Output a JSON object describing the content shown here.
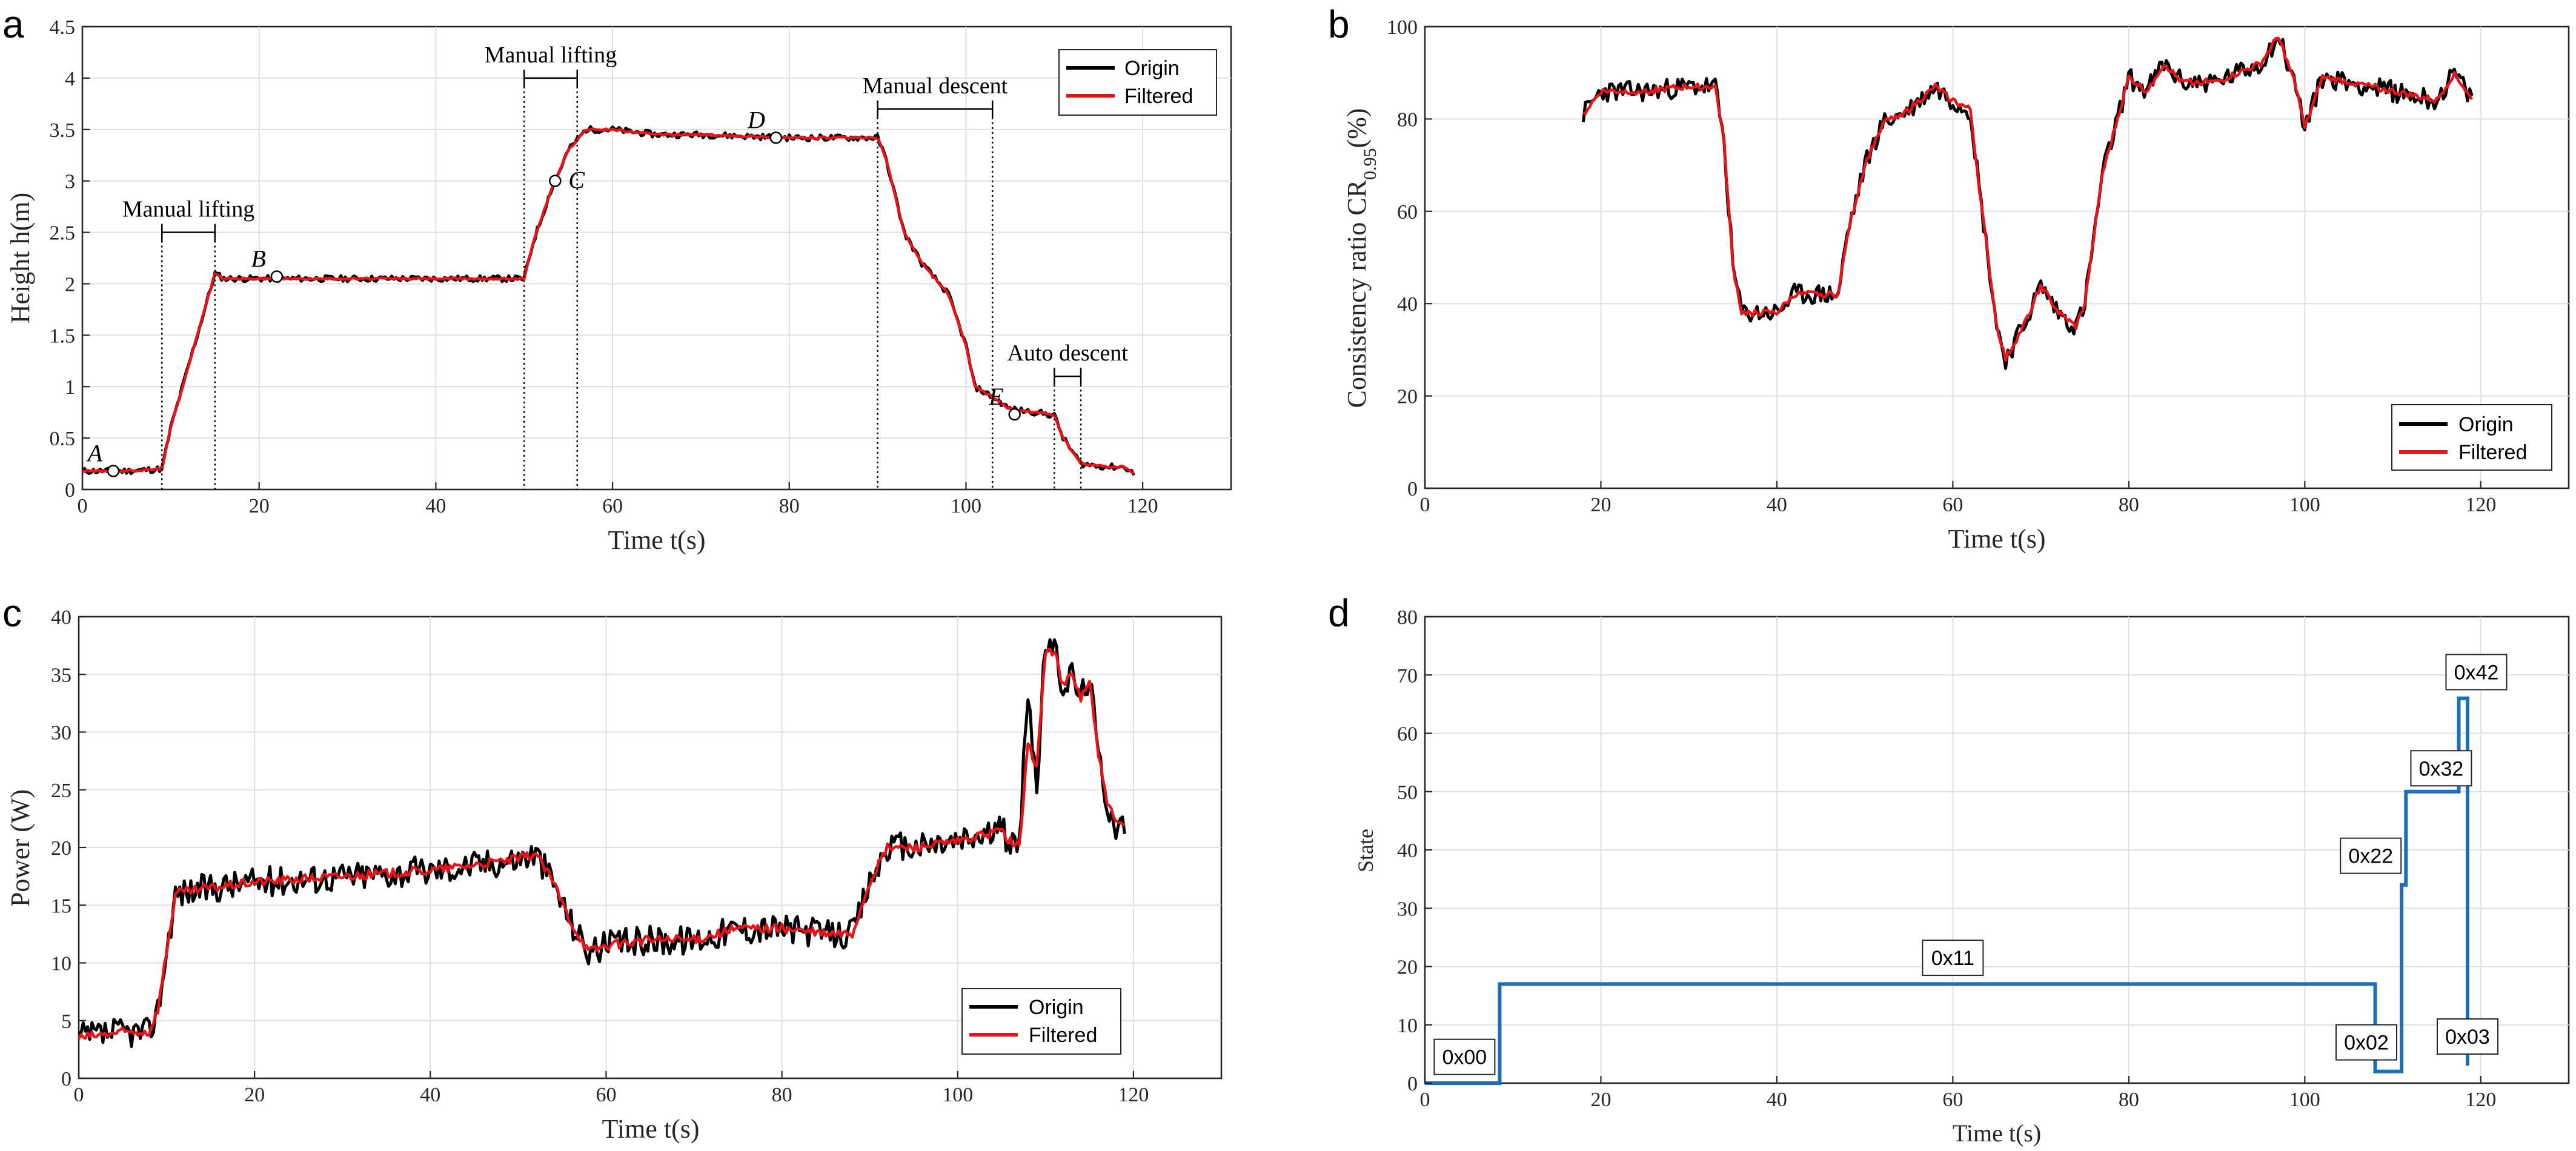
{
  "chart_data": [
    {
      "id": "a",
      "panel_label": "a",
      "type": "line",
      "ylabel": "Height h(m)",
      "xlabel": "Time t(s)",
      "xlim": [
        0,
        130
      ],
      "ylim": [
        0,
        4.5
      ],
      "xticks": [
        0,
        20,
        40,
        60,
        80,
        100,
        120
      ],
      "yticks": [
        0,
        0.5,
        1,
        1.5,
        2,
        2.5,
        3,
        3.5,
        4,
        4.5
      ],
      "ytick_labels": [
        "0",
        "0.5",
        "1",
        "1.5",
        "2",
        "2.5",
        "3",
        "3.5",
        "4",
        "4.5"
      ],
      "grid": true,
      "legend_position": "top-right",
      "legend": [
        "Origin",
        "Filtered"
      ],
      "colors": {
        "Origin": "#000000",
        "Filtered": "#e8141a"
      },
      "x": [
        0,
        5,
        9,
        10,
        12,
        14,
        15,
        16,
        20,
        30,
        40,
        50,
        51,
        53,
        55,
        57,
        60,
        65,
        70,
        80,
        90,
        91,
        93,
        95,
        98,
        100,
        101,
        103,
        105,
        108,
        110,
        111,
        113,
        116,
        118,
        119
      ],
      "series": [
        {
          "name": "Origin",
          "values": [
            0.18,
            0.18,
            0.2,
            0.6,
            1.2,
            1.8,
            2.1,
            2.05,
            2.05,
            2.05,
            2.05,
            2.05,
            2.4,
            2.9,
            3.3,
            3.5,
            3.5,
            3.45,
            3.45,
            3.42,
            3.42,
            3.2,
            2.5,
            2.2,
            1.9,
            1.4,
            1.0,
            0.9,
            0.78,
            0.75,
            0.72,
            0.5,
            0.25,
            0.22,
            0.22,
            0.15
          ]
        },
        {
          "name": "Filtered",
          "values": [
            0.18,
            0.18,
            0.2,
            0.6,
            1.2,
            1.8,
            2.1,
            2.05,
            2.05,
            2.05,
            2.05,
            2.05,
            2.4,
            2.9,
            3.3,
            3.5,
            3.5,
            3.45,
            3.45,
            3.42,
            3.42,
            3.2,
            2.5,
            2.2,
            1.9,
            1.4,
            1.0,
            0.9,
            0.78,
            0.75,
            0.72,
            0.5,
            0.25,
            0.22,
            0.22,
            0.15
          ]
        }
      ],
      "points": [
        {
          "label": "A",
          "x": 3.5,
          "y": 0.18
        },
        {
          "label": "B",
          "x": 22,
          "y": 2.07
        },
        {
          "label": "C",
          "x": 53.5,
          "y": 3.0
        },
        {
          "label": "D",
          "x": 78.5,
          "y": 3.42
        },
        {
          "label": "E",
          "x": 105.5,
          "y": 0.73
        }
      ],
      "annotations": [
        {
          "text": "Manual lifting",
          "x_start": 9,
          "x_end": 15,
          "y": 2.5
        },
        {
          "text": "Manual lifting",
          "x_start": 50,
          "x_end": 56,
          "y": 4.0
        },
        {
          "text": "Manual descent",
          "x_start": 90,
          "x_end": 103,
          "y": 3.7
        },
        {
          "text": "Auto descent",
          "x_start": 110,
          "x_end": 113,
          "y": 1.1
        }
      ]
    },
    {
      "id": "b",
      "panel_label": "b",
      "type": "line",
      "ylabel": "Consistency ratio CR0.95(%)",
      "xlabel": "Time t(s)",
      "xlim": [
        0,
        130
      ],
      "ylim": [
        0,
        100
      ],
      "xticks": [
        0,
        20,
        40,
        60,
        80,
        100,
        120
      ],
      "yticks": [
        0,
        20,
        40,
        60,
        80,
        100
      ],
      "grid": true,
      "legend_position": "bottom-right",
      "legend": [
        "Origin",
        "Filtered"
      ],
      "colors": {
        "Origin": "#000000",
        "Filtered": "#e8141a"
      },
      "x": [
        18,
        20,
        25,
        30,
        33,
        34,
        35,
        36,
        40,
        42,
        45,
        47,
        48,
        50,
        52,
        55,
        58,
        60,
        62,
        63,
        65,
        66,
        68,
        70,
        72,
        74,
        75,
        77,
        79,
        80,
        82,
        84,
        86,
        90,
        95,
        97,
        99,
        100,
        102,
        105,
        110,
        115,
        117,
        119
      ],
      "series": [
        {
          "name": "Origin",
          "values": [
            81,
            86,
            86,
            87,
            87,
            75,
            48,
            38,
            38,
            42,
            42,
            42,
            55,
            70,
            79,
            82,
            87,
            84,
            82,
            65,
            35,
            28,
            35,
            44,
            38,
            35,
            40,
            68,
            82,
            89,
            86,
            92,
            88,
            88,
            92,
            98,
            87,
            78,
            89,
            88,
            86,
            84,
            90,
            84
          ]
        },
        {
          "name": "Filtered",
          "values": [
            81,
            86,
            86,
            87,
            87,
            75,
            48,
            38,
            38,
            42,
            42,
            42,
            55,
            70,
            79,
            82,
            87,
            84,
            82,
            65,
            35,
            28,
            35,
            44,
            38,
            35,
            40,
            68,
            82,
            89,
            86,
            92,
            88,
            88,
            92,
            98,
            87,
            78,
            89,
            88,
            86,
            84,
            90,
            84
          ]
        }
      ]
    },
    {
      "id": "c",
      "panel_label": "c",
      "type": "line",
      "ylabel": "Power (W)",
      "xlabel": "Time t(s)",
      "xlim": [
        0,
        130
      ],
      "ylim": [
        0,
        40
      ],
      "xticks": [
        0,
        20,
        40,
        60,
        80,
        100,
        120
      ],
      "yticks": [
        0,
        5,
        10,
        15,
        20,
        25,
        30,
        35,
        40
      ],
      "grid": true,
      "legend_position": "bottom-right",
      "legend": [
        "Origin",
        "Filtered"
      ],
      "colors": {
        "Origin": "#000000",
        "Filtered": "#e8141a"
      },
      "x": [
        0,
        5,
        8,
        9,
        10,
        11,
        15,
        20,
        30,
        40,
        45,
        50,
        52,
        54,
        56,
        58,
        60,
        65,
        70,
        75,
        80,
        85,
        88,
        90,
        92,
        95,
        100,
        105,
        106,
        107,
        108,
        109,
        110,
        111,
        112,
        113,
        114,
        115,
        116,
        117,
        118,
        119
      ],
      "series": [
        {
          "name": "Origin",
          "values": [
            3.5,
            4,
            4,
            6,
            11,
            16,
            16.5,
            17,
            17.5,
            18,
            18.5,
            19,
            19.5,
            17,
            13.5,
            11,
            11.5,
            12,
            12,
            13,
            13,
            12.5,
            12.5,
            17,
            20,
            20,
            20.5,
            21.5,
            20.5,
            20,
            34,
            25,
            38,
            37,
            34,
            35,
            33,
            35,
            28,
            24,
            22,
            22
          ]
        },
        {
          "name": "Filtered",
          "values": [
            3.5,
            4,
            4,
            6,
            11,
            16,
            16.5,
            17,
            17.5,
            18,
            18.5,
            19,
            19.5,
            17,
            13.5,
            11,
            11.5,
            12,
            12,
            13,
            13,
            12.5,
            12.5,
            17,
            20,
            20,
            20.5,
            21.5,
            20.5,
            20,
            29,
            27,
            37,
            37,
            34,
            35,
            33,
            34.5,
            28,
            24,
            22,
            22
          ]
        }
      ]
    },
    {
      "id": "d",
      "panel_label": "d",
      "type": "line",
      "ylabel": "State",
      "xlabel": "Time t(s)",
      "xlim": [
        0,
        130
      ],
      "ylim": [
        0,
        80
      ],
      "xticks": [
        0,
        20,
        40,
        60,
        80,
        100,
        120
      ],
      "yticks": [
        0,
        10,
        20,
        30,
        40,
        50,
        60,
        70,
        80
      ],
      "grid": true,
      "colors": {
        "State": "#1a6fb5"
      },
      "x": [
        0,
        8.5,
        8.5,
        108,
        108,
        111,
        111,
        111.5,
        111.5,
        117.5,
        117.5,
        118.5,
        118.5
      ],
      "series": [
        {
          "name": "State",
          "values": [
            0,
            0,
            17,
            17,
            2,
            2,
            34,
            34,
            50,
            50,
            66,
            66,
            3
          ]
        }
      ],
      "state_labels": [
        {
          "text": "0x00",
          "x": 4.5,
          "y": 4.5
        },
        {
          "text": "0x11",
          "x": 60,
          "y": 21.5
        },
        {
          "text": "0x02",
          "x": 107,
          "y": 7
        },
        {
          "text": "0x22",
          "x": 107.5,
          "y": 39
        },
        {
          "text": "0x32",
          "x": 115.5,
          "y": 54
        },
        {
          "text": "0x42",
          "x": 119.5,
          "y": 70.5
        },
        {
          "text": "0x03",
          "x": 118.5,
          "y": 8
        }
      ]
    }
  ]
}
